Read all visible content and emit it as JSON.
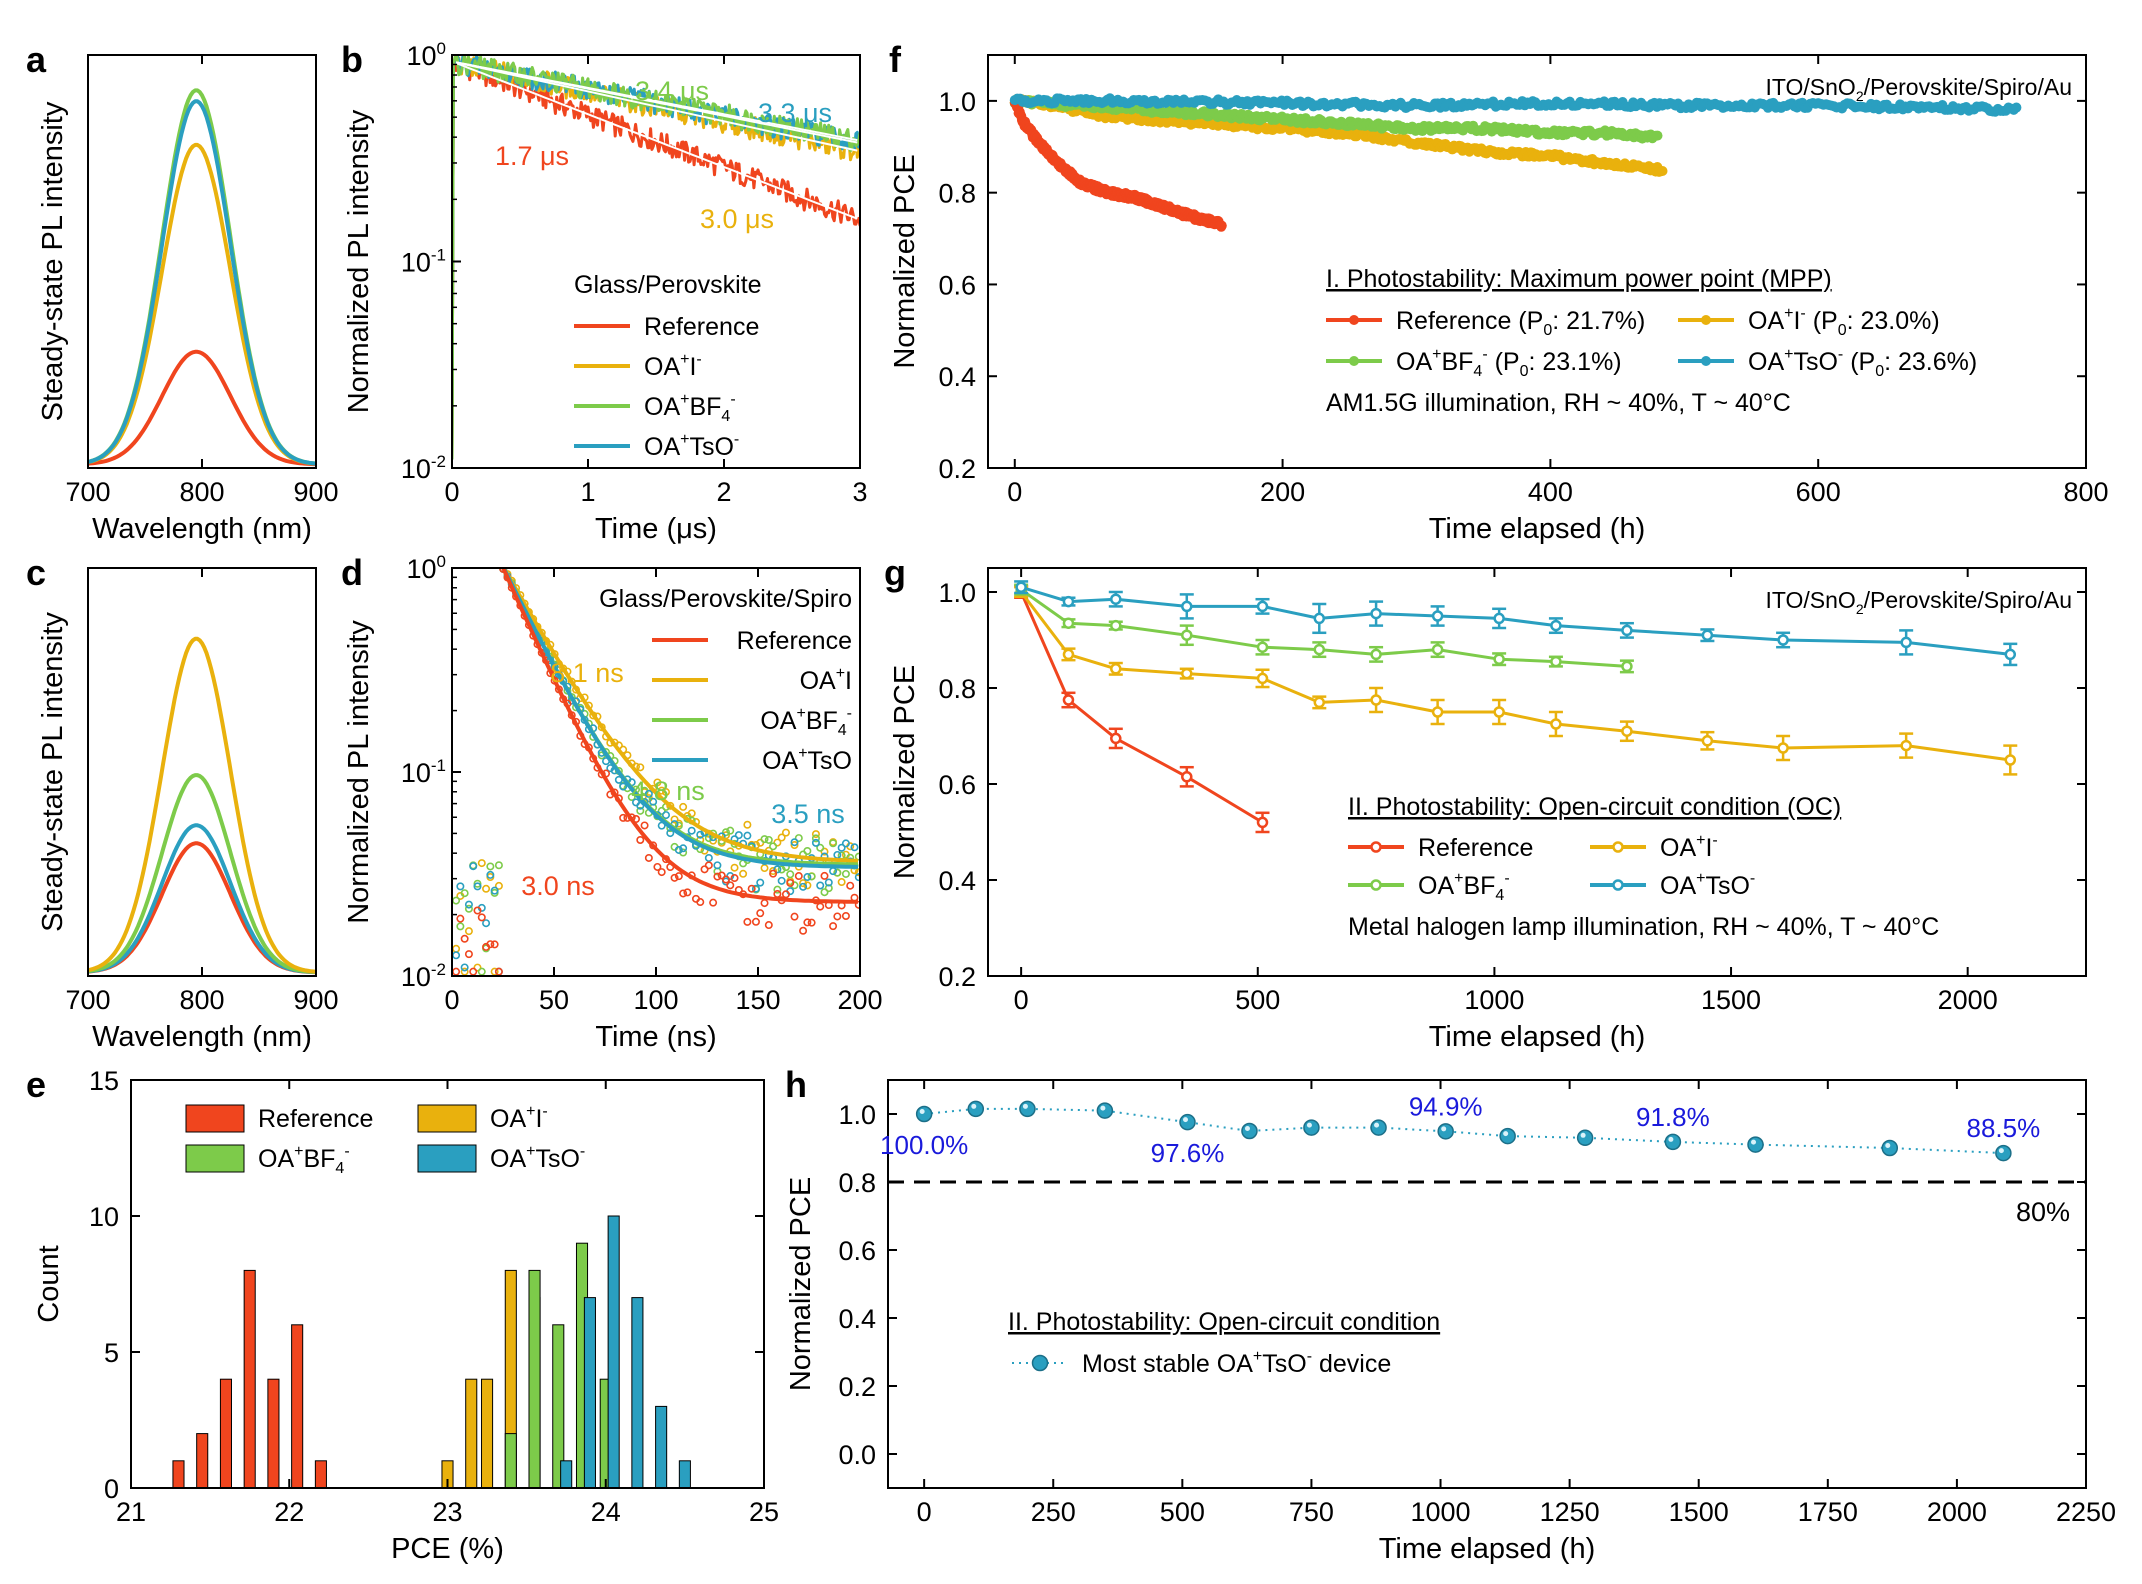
{
  "colors": {
    "ref": "#f0451e",
    "oai": "#e9b10d",
    "oabf4": "#7dcb4a",
    "oatso": "#2a9fc0",
    "annot": "#1a1adb",
    "axis": "#000000"
  },
  "chart_data": [
    {
      "id": "a",
      "letter": "a",
      "type": "line",
      "title": "",
      "xlabel": "Wavelength (nm)",
      "ylabel": "Steady-state PL intensity",
      "xlim": [
        700,
        900
      ],
      "ylim": [
        0,
        1
      ],
      "xticks": [
        700,
        800,
        900
      ],
      "yticks_hidden": true,
      "series": [
        {
          "name": "Reference",
          "color": "ref",
          "peak_x": 795,
          "peak": 0.31,
          "width": 30
        },
        {
          "name": "OA+I-",
          "color": "oai",
          "peak_x": 795,
          "peak": 0.88,
          "width": 30
        },
        {
          "name": "OA+BF4-",
          "color": "oabf4",
          "peak_x": 795,
          "peak": 1.03,
          "width": 30
        },
        {
          "name": "OA+TsO-",
          "color": "oatso",
          "peak_x": 795,
          "peak": 1.0,
          "width": 30
        }
      ]
    },
    {
      "id": "b",
      "letter": "b",
      "type": "line",
      "yscale": "log",
      "xlabel": "Time (μs)",
      "ylabel": "Normalized PL intensity",
      "xlim": [
        0,
        3
      ],
      "ylim": [
        0.01,
        1
      ],
      "xticks": [
        0,
        1,
        2,
        3
      ],
      "yticks": [
        0.01,
        0.1,
        1
      ],
      "ytick_labels": [
        "10",
        "10",
        "10"
      ],
      "ytick_exps": [
        "-2",
        "-1",
        "0"
      ],
      "legend_title": "Glass/Perovskite",
      "series": [
        {
          "name": "Reference",
          "color": "ref",
          "tau": 1.7,
          "label": "1.7 μs"
        },
        {
          "name": "OA+I-",
          "color": "oai",
          "tau": 3.0,
          "label": "3.0 μs"
        },
        {
          "name": "OA+BF4-",
          "color": "oabf4",
          "tau": 3.4,
          "label": "3.4 μs"
        },
        {
          "name": "OA+TsO-",
          "color": "oatso",
          "tau": 3.3,
          "label": "3.3 μs"
        }
      ]
    },
    {
      "id": "c",
      "letter": "c",
      "type": "line",
      "xlabel": "Wavelength (nm)",
      "ylabel": "Steady-state PL intensity",
      "xlim": [
        700,
        900
      ],
      "ylim": [
        0,
        1
      ],
      "xticks": [
        700,
        800,
        900
      ],
      "yticks_hidden": true,
      "series": [
        {
          "name": "Reference",
          "color": "ref",
          "peak_x": 795,
          "peak": 0.36,
          "width": 30
        },
        {
          "name": "OA+TsO-",
          "color": "oatso",
          "peak_x": 795,
          "peak": 0.41,
          "width": 30
        },
        {
          "name": "OA+BF4-",
          "color": "oabf4",
          "peak_x": 795,
          "peak": 0.55,
          "width": 30
        },
        {
          "name": "OA+I-",
          "color": "oai",
          "peak_x": 795,
          "peak": 0.93,
          "width": 30
        }
      ]
    },
    {
      "id": "d",
      "letter": "d",
      "type": "scatter",
      "yscale": "log",
      "xlabel": "Time (ns)",
      "ylabel": "Normalized PL intensity",
      "xlim": [
        0,
        200
      ],
      "ylim": [
        0.01,
        1
      ],
      "xticks": [
        0,
        50,
        100,
        150,
        200
      ],
      "yticks": [
        0.01,
        0.1,
        1
      ],
      "ytick_labels": [
        "10",
        "10",
        "10"
      ],
      "ytick_exps": [
        "-2",
        "-1",
        "0"
      ],
      "legend_title": "Glass/Perovskite/Spiro",
      "series": [
        {
          "name": "Reference",
          "color": "ref",
          "tau": 19,
          "floor": 0.023,
          "label": "3.0 ns"
        },
        {
          "name": "OA+I",
          "color": "oai",
          "tau": 24,
          "floor": 0.036,
          "label": "8.1 ns"
        },
        {
          "name": "OA+BF4-",
          "color": "oabf4",
          "tau": 21,
          "floor": 0.035,
          "label": "4.8 ns"
        },
        {
          "name": "OA+TsO",
          "color": "oatso",
          "tau": 21,
          "floor": 0.034,
          "label": "3.5 ns"
        }
      ]
    },
    {
      "id": "e",
      "letter": "e",
      "type": "bar",
      "xlabel": "PCE (%)",
      "ylabel": "Count",
      "xlim": [
        21,
        25
      ],
      "ylim": [
        0,
        15
      ],
      "xticks": [
        21,
        22,
        23,
        24,
        25
      ],
      "yticks": [
        0,
        5,
        10,
        15
      ],
      "bin_width": 0.07,
      "series": [
        {
          "name": "Reference",
          "color": "ref",
          "x": [
            21.3,
            21.45,
            21.6,
            21.75,
            21.9,
            22.05,
            22.2
          ],
          "values": [
            1,
            2,
            4,
            8,
            4,
            6,
            1
          ]
        },
        {
          "name": "OA+I-",
          "color": "oai",
          "x": [
            23.0,
            23.15,
            23.25,
            23.4,
            23.55
          ],
          "values": [
            1,
            4,
            4,
            8,
            7
          ]
        },
        {
          "name": "OA+BF4-",
          "color": "oabf4",
          "x": [
            23.4,
            23.55,
            23.7,
            23.85,
            24.0
          ],
          "values": [
            2,
            8,
            6,
            9,
            4
          ]
        },
        {
          "name": "OA+TsO-",
          "color": "oatso",
          "x": [
            23.75,
            23.9,
            24.05,
            24.2,
            24.35,
            24.5
          ],
          "values": [
            1,
            7,
            10,
            7,
            3,
            1
          ]
        }
      ]
    },
    {
      "id": "f",
      "letter": "f",
      "type": "line",
      "xlabel": "Time elapsed (h)",
      "ylabel": "Normalized PCE",
      "xlim": [
        -20,
        800
      ],
      "ylim": [
        0.2,
        1.1
      ],
      "xticks": [
        0,
        200,
        400,
        600,
        800
      ],
      "yticks": [
        0.2,
        0.4,
        0.6,
        0.8,
        1.0
      ],
      "ytick_labels": [
        "0.2",
        "0.4",
        "0.6",
        "0.8",
        "1.0"
      ],
      "device": "ITO/SnO2/Perovskite/Spiro/Au",
      "legend_title": "I. Photostability: Maximum power point (MPP)",
      "condition": "AM1.5G illumination, RH ~ 40%, T ~ 40°C",
      "series": [
        {
          "name": "Reference",
          "p0": "21.7%",
          "color": "ref",
          "x": [
            0,
            5,
            15,
            30,
            50,
            70,
            90,
            110,
            130,
            155
          ],
          "y": [
            1.0,
            0.96,
            0.92,
            0.87,
            0.82,
            0.8,
            0.79,
            0.77,
            0.75,
            0.73
          ]
        },
        {
          "name": "OA+I-",
          "p0": "23.0%",
          "color": "oai",
          "x": [
            0,
            30,
            60,
            100,
            150,
            200,
            250,
            300,
            350,
            400,
            450,
            485
          ],
          "y": [
            1.0,
            0.99,
            0.97,
            0.96,
            0.95,
            0.94,
            0.93,
            0.91,
            0.89,
            0.88,
            0.86,
            0.85
          ]
        },
        {
          "name": "OA+BF4-",
          "p0": "23.1%",
          "color": "oabf4",
          "x": [
            0,
            50,
            100,
            150,
            200,
            250,
            300,
            350,
            400,
            450,
            480
          ],
          "y": [
            1.0,
            0.99,
            0.98,
            0.97,
            0.96,
            0.95,
            0.94,
            0.94,
            0.93,
            0.93,
            0.92
          ]
        },
        {
          "name": "OA+TsO-",
          "p0": "23.6%",
          "color": "oatso",
          "x": [
            0,
            100,
            200,
            300,
            400,
            500,
            600,
            700,
            750
          ],
          "y": [
            1.0,
            1.0,
            0.995,
            0.99,
            0.995,
            0.99,
            0.99,
            0.985,
            0.98
          ]
        }
      ]
    },
    {
      "id": "g",
      "letter": "g",
      "type": "line",
      "xlabel": "Time elapsed (h)",
      "ylabel": "Normalized PCE",
      "xlim": [
        -70,
        2250
      ],
      "ylim": [
        0.2,
        1.05
      ],
      "xticks": [
        0,
        500,
        1000,
        1500,
        2000
      ],
      "yticks": [
        0.2,
        0.4,
        0.6,
        0.8,
        1.0
      ],
      "ytick_labels": [
        "0.2",
        "0.4",
        "0.6",
        "0.8",
        "1.0"
      ],
      "device": "ITO/SnO2/Perovskite/Spiro/Au",
      "legend_title": "II. Photostability: Open-circuit condition (OC)",
      "condition": "Metal halogen lamp illumination, RH ~ 40%, T ~ 40°C",
      "series": [
        {
          "name": "Reference",
          "color": "ref",
          "x": [
            0,
            100,
            200,
            350,
            510
          ],
          "y": [
            1.0,
            0.775,
            0.695,
            0.615,
            0.52
          ],
          "err": [
            0.012,
            0.015,
            0.02,
            0.02,
            0.02
          ]
        },
        {
          "name": "OA+I-",
          "color": "oai",
          "x": [
            0,
            100,
            200,
            350,
            510,
            630,
            750,
            880,
            1010,
            1130,
            1280,
            1450,
            1610,
            1870,
            2090
          ],
          "y": [
            1.0,
            0.87,
            0.84,
            0.83,
            0.82,
            0.77,
            0.775,
            0.75,
            0.75,
            0.725,
            0.71,
            0.69,
            0.675,
            0.68,
            0.65
          ],
          "err": [
            0.01,
            0.012,
            0.012,
            0.01,
            0.018,
            0.012,
            0.025,
            0.025,
            0.025,
            0.025,
            0.02,
            0.018,
            0.025,
            0.025,
            0.03
          ]
        },
        {
          "name": "OA+BF4-",
          "color": "oabf4",
          "x": [
            0,
            100,
            200,
            350,
            510,
            630,
            750,
            880,
            1010,
            1130,
            1280
          ],
          "y": [
            1.005,
            0.935,
            0.93,
            0.91,
            0.885,
            0.88,
            0.87,
            0.88,
            0.86,
            0.855,
            0.845
          ],
          "err": [
            0.01,
            0.008,
            0.008,
            0.02,
            0.015,
            0.015,
            0.015,
            0.015,
            0.012,
            0.01,
            0.012
          ]
        },
        {
          "name": "OA+TsO-",
          "color": "oatso",
          "x": [
            0,
            100,
            200,
            350,
            510,
            630,
            750,
            880,
            1010,
            1130,
            1280,
            1450,
            1610,
            1870,
            2090
          ],
          "y": [
            1.01,
            0.98,
            0.985,
            0.97,
            0.97,
            0.945,
            0.955,
            0.95,
            0.945,
            0.93,
            0.92,
            0.91,
            0.9,
            0.895,
            0.87
          ],
          "err": [
            0.012,
            0.008,
            0.015,
            0.025,
            0.015,
            0.03,
            0.025,
            0.02,
            0.02,
            0.015,
            0.015,
            0.012,
            0.015,
            0.025,
            0.022
          ]
        }
      ]
    },
    {
      "id": "h",
      "letter": "h",
      "type": "scatter",
      "xlabel": "Time elapsed (h)",
      "ylabel": "Normalized PCE",
      "xlim": [
        -70,
        2250
      ],
      "ylim": [
        -0.1,
        1.1
      ],
      "xticks": [
        0,
        250,
        500,
        750,
        1000,
        1250,
        1500,
        1750,
        2000,
        2250
      ],
      "yticks": [
        0.0,
        0.2,
        0.4,
        0.6,
        0.8,
        1.0
      ],
      "ytick_labels": [
        "0.0",
        "0.2",
        "0.4",
        "0.6",
        "0.8",
        "1.0"
      ],
      "legend_title": "II. Photostability: Open-circuit condition",
      "reference_line": {
        "y": 0.8,
        "label": "80%"
      },
      "series": [
        {
          "name": "Most stable OA+TsO- device",
          "color": "oatso",
          "x": [
            0,
            100,
            200,
            350,
            510,
            630,
            750,
            880,
            1010,
            1130,
            1280,
            1450,
            1610,
            1870,
            2090
          ],
          "y": [
            1.0,
            1.015,
            1.015,
            1.01,
            0.976,
            0.95,
            0.96,
            0.96,
            0.949,
            0.935,
            0.93,
            0.918,
            0.91,
            0.9,
            0.885
          ]
        }
      ],
      "annotations": [
        {
          "x": 0,
          "y": 1.0,
          "text": "100.0%",
          "pos": "below"
        },
        {
          "x": 510,
          "y": 0.976,
          "text": "97.6%",
          "pos": "below"
        },
        {
          "x": 1010,
          "y": 0.949,
          "text": "94.9%",
          "pos": "above"
        },
        {
          "x": 1450,
          "y": 0.918,
          "text": "91.8%",
          "pos": "above"
        },
        {
          "x": 2090,
          "y": 0.885,
          "text": "88.5%",
          "pos": "above"
        }
      ]
    }
  ]
}
